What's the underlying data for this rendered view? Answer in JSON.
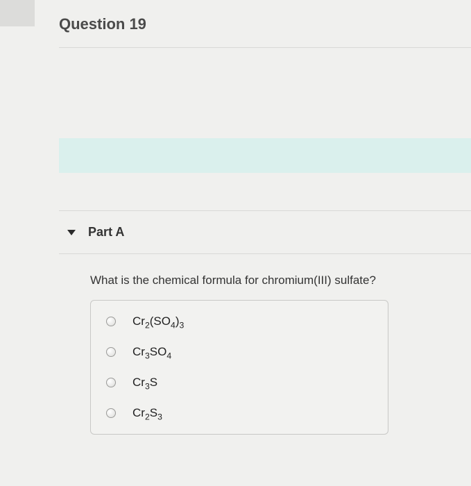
{
  "question": {
    "title": "Question 19",
    "part_label": "Part A",
    "prompt": "What is the chemical formula for chromium(III) sulfate?",
    "options": [
      {
        "html": "Cr<sub>2</sub>(SO<sub>4</sub>)<sub>3</sub>"
      },
      {
        "html": "Cr<sub>3</sub>SO<sub>4</sub>"
      },
      {
        "html": "Cr<sub>3</sub>S"
      },
      {
        "html": "Cr<sub>2</sub>S<sub>3</sub>"
      }
    ]
  },
  "colors": {
    "banner_bg": "#daf0ed",
    "page_bg": "#f0f0ee",
    "border": "#d8d8d6",
    "box_border": "#c8c8c6",
    "text": "#333333"
  }
}
